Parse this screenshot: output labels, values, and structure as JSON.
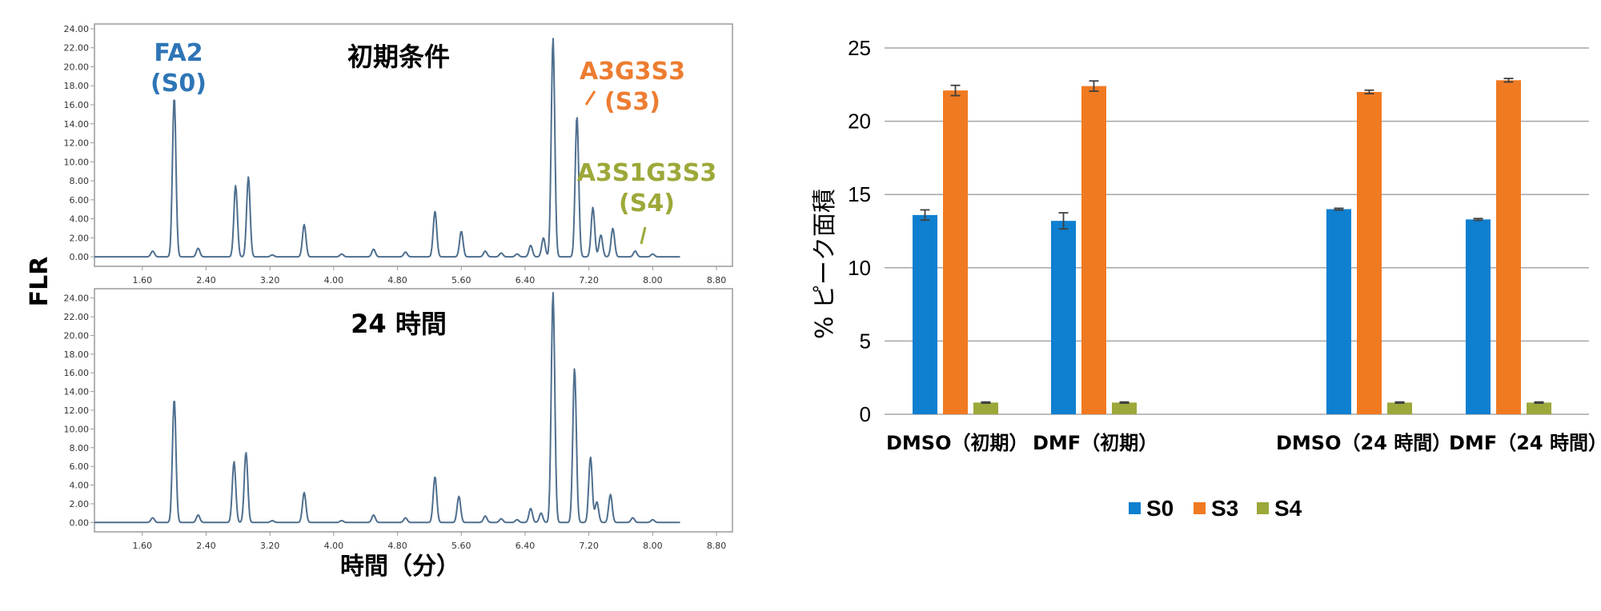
{
  "chart_data": [
    {
      "type": "line",
      "panel": "chromatogram-initial",
      "condition_label": "初期条件",
      "ylabel": "FLR",
      "xlabel": "時間（分）",
      "xlim": [
        1.0,
        9.0
      ],
      "ylim": [
        -1.0,
        24.5
      ],
      "xticks": [
        "1.60",
        "2.40",
        "3.20",
        "4.00",
        "4.80",
        "5.60",
        "6.40",
        "7.20",
        "8.00",
        "8.80"
      ],
      "yticks": [
        "0.00",
        "2.00",
        "4.00",
        "6.00",
        "8.00",
        "10.00",
        "12.00",
        "14.00",
        "16.00",
        "18.00",
        "20.00",
        "22.00",
        "24.00"
      ],
      "series": [
        {
          "color": "#4f6f8f",
          "peaks": [
            {
              "x": 1.73,
              "y": 0.6
            },
            {
              "x": 2.0,
              "y": 16.8
            },
            {
              "x": 2.3,
              "y": 0.9
            },
            {
              "x": 2.77,
              "y": 7.5
            },
            {
              "x": 2.93,
              "y": 8.4
            },
            {
              "x": 3.23,
              "y": 0.2
            },
            {
              "x": 3.63,
              "y": 3.4
            },
            {
              "x": 4.1,
              "y": 0.3
            },
            {
              "x": 4.5,
              "y": 0.8
            },
            {
              "x": 4.9,
              "y": 0.5
            },
            {
              "x": 5.27,
              "y": 4.8
            },
            {
              "x": 5.6,
              "y": 2.7
            },
            {
              "x": 5.9,
              "y": 0.6
            },
            {
              "x": 6.1,
              "y": 0.4
            },
            {
              "x": 6.3,
              "y": 0.3
            },
            {
              "x": 6.47,
              "y": 1.2
            },
            {
              "x": 6.63,
              "y": 2.0
            },
            {
              "x": 6.75,
              "y": 23.0
            },
            {
              "x": 7.05,
              "y": 14.8
            },
            {
              "x": 7.25,
              "y": 5.2
            },
            {
              "x": 7.35,
              "y": 2.3
            },
            {
              "x": 7.5,
              "y": 3.0
            },
            {
              "x": 7.78,
              "y": 0.6
            },
            {
              "x": 8.0,
              "y": 0.3
            }
          ]
        }
      ],
      "annotations": [
        {
          "text": [
            "FA2",
            "(S0)"
          ],
          "color": "#2e75b6"
        },
        {
          "text": [
            "A3G3S3",
            "(S3)"
          ],
          "color": "#ed7d31"
        },
        {
          "text": [
            "A3S1G3S3",
            "(S4)"
          ],
          "color": "#9da839"
        }
      ]
    },
    {
      "type": "line",
      "panel": "chromatogram-24h",
      "condition_label": "24 時間",
      "ylabel": "FLR",
      "xlabel": "時間（分）",
      "xlim": [
        1.0,
        9.0
      ],
      "ylim": [
        -1.0,
        25.0
      ],
      "xticks": [
        "1.60",
        "2.40",
        "3.20",
        "4.00",
        "4.80",
        "5.60",
        "6.40",
        "7.20",
        "8.00",
        "8.80"
      ],
      "yticks": [
        "0.00",
        "2.00",
        "4.00",
        "6.00",
        "8.00",
        "10.00",
        "12.00",
        "14.00",
        "16.00",
        "18.00",
        "20.00",
        "22.00",
        "24.00"
      ],
      "series": [
        {
          "color": "#4f6f8f",
          "peaks": [
            {
              "x": 1.73,
              "y": 0.5
            },
            {
              "x": 2.0,
              "y": 13.2
            },
            {
              "x": 2.3,
              "y": 0.8
            },
            {
              "x": 2.75,
              "y": 6.5
            },
            {
              "x": 2.9,
              "y": 7.5
            },
            {
              "x": 3.23,
              "y": 0.2
            },
            {
              "x": 3.63,
              "y": 3.2
            },
            {
              "x": 4.1,
              "y": 0.2
            },
            {
              "x": 4.5,
              "y": 0.8
            },
            {
              "x": 4.9,
              "y": 0.5
            },
            {
              "x": 5.27,
              "y": 4.9
            },
            {
              "x": 5.57,
              "y": 2.8
            },
            {
              "x": 5.9,
              "y": 0.7
            },
            {
              "x": 6.1,
              "y": 0.4
            },
            {
              "x": 6.3,
              "y": 0.3
            },
            {
              "x": 6.47,
              "y": 1.5
            },
            {
              "x": 6.6,
              "y": 1.0
            },
            {
              "x": 6.75,
              "y": 24.6
            },
            {
              "x": 7.02,
              "y": 16.5
            },
            {
              "x": 7.22,
              "y": 7.0
            },
            {
              "x": 7.3,
              "y": 2.2
            },
            {
              "x": 7.47,
              "y": 3.0
            },
            {
              "x": 7.75,
              "y": 0.5
            },
            {
              "x": 8.0,
              "y": 0.3
            }
          ]
        }
      ]
    },
    {
      "type": "bar",
      "panel": "peak-area-bars",
      "ylabel": "% ピーク面積",
      "ylim": [
        0,
        25
      ],
      "yticks": [
        "0",
        "5",
        "10",
        "15",
        "20",
        "25"
      ],
      "categories": [
        "DMSO（初期）",
        "DMF（初期）",
        "DMSO（24 時間）",
        "DMF（24 時間）"
      ],
      "legend_position": "bottom",
      "grid": true,
      "series": [
        {
          "name": "S0",
          "color": "#0f7fd0",
          "values": [
            13.6,
            13.2,
            14.0,
            13.3
          ],
          "errors": [
            0.35,
            0.55,
            0.06,
            0.06
          ]
        },
        {
          "name": "S3",
          "color": "#f07a21",
          "values": [
            22.1,
            22.4,
            22.0,
            22.8
          ],
          "errors": [
            0.35,
            0.35,
            0.12,
            0.12
          ]
        },
        {
          "name": "S4",
          "color": "#9da83a",
          "values": [
            0.8,
            0.8,
            0.8,
            0.8
          ],
          "errors": [
            0.04,
            0.04,
            0.04,
            0.04
          ]
        }
      ]
    }
  ]
}
